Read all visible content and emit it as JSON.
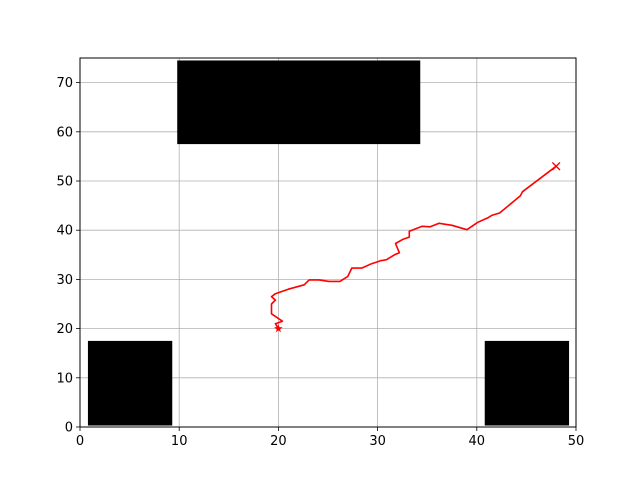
{
  "chart_data": {
    "type": "line",
    "title": "",
    "xlabel": "",
    "ylabel": "",
    "xlim": [
      0,
      50
    ],
    "ylim": [
      0,
      75
    ],
    "xticks": [
      0,
      10,
      20,
      30,
      40,
      50
    ],
    "yticks": [
      0,
      10,
      20,
      30,
      40,
      50,
      60,
      70
    ],
    "grid": true,
    "legend": "none",
    "obstacles": [
      {
        "x0": 0.8,
        "x1": 9.3,
        "y0": 0.3,
        "y1": 17.5,
        "color": "#000000"
      },
      {
        "x0": 9.8,
        "x1": 34.3,
        "y0": 57.5,
        "y1": 74.5,
        "color": "#000000"
      },
      {
        "x0": 40.8,
        "x1": 49.3,
        "y0": 0.3,
        "y1": 17.5,
        "color": "#000000"
      }
    ],
    "series": [
      {
        "color": "#ff0000",
        "x": [
          20.0,
          19.7,
          20.4,
          19.3,
          19.3,
          19.7,
          19.3,
          19.7,
          21.0,
          22.6,
          23.1,
          24.1,
          25.1,
          26.2,
          27.0,
          27.4,
          28.4,
          29.4,
          30.3,
          30.9,
          31.7,
          32.2,
          31.8,
          32.6,
          33.2,
          33.2,
          34.5,
          35.3,
          36.2,
          37.5,
          39.0,
          40.1,
          41.1,
          41.5,
          42.3,
          44.4,
          44.6,
          48.0
        ],
        "y": [
          20.0,
          21.0,
          21.5,
          23.0,
          25.0,
          25.8,
          26.5,
          27.1,
          28.0,
          28.9,
          29.9,
          29.9,
          29.6,
          29.6,
          30.6,
          32.3,
          32.3,
          33.2,
          33.8,
          34.0,
          35.0,
          35.4,
          37.3,
          38.2,
          38.6,
          39.8,
          40.8,
          40.7,
          41.4,
          41.0,
          40.1,
          41.6,
          42.5,
          43.0,
          43.5,
          47.0,
          47.8,
          53.0
        ]
      }
    ],
    "start_marker": {
      "x": 20.0,
      "y": 20.0,
      "symbol": "*",
      "color": "#ff0000"
    },
    "end_marker": {
      "x": 48.0,
      "y": 53.0,
      "symbol": "x",
      "color": "#ff0000"
    },
    "colors": {
      "axes": "#000000",
      "grid": "#b0b0b0",
      "background": "#ffffff"
    }
  }
}
